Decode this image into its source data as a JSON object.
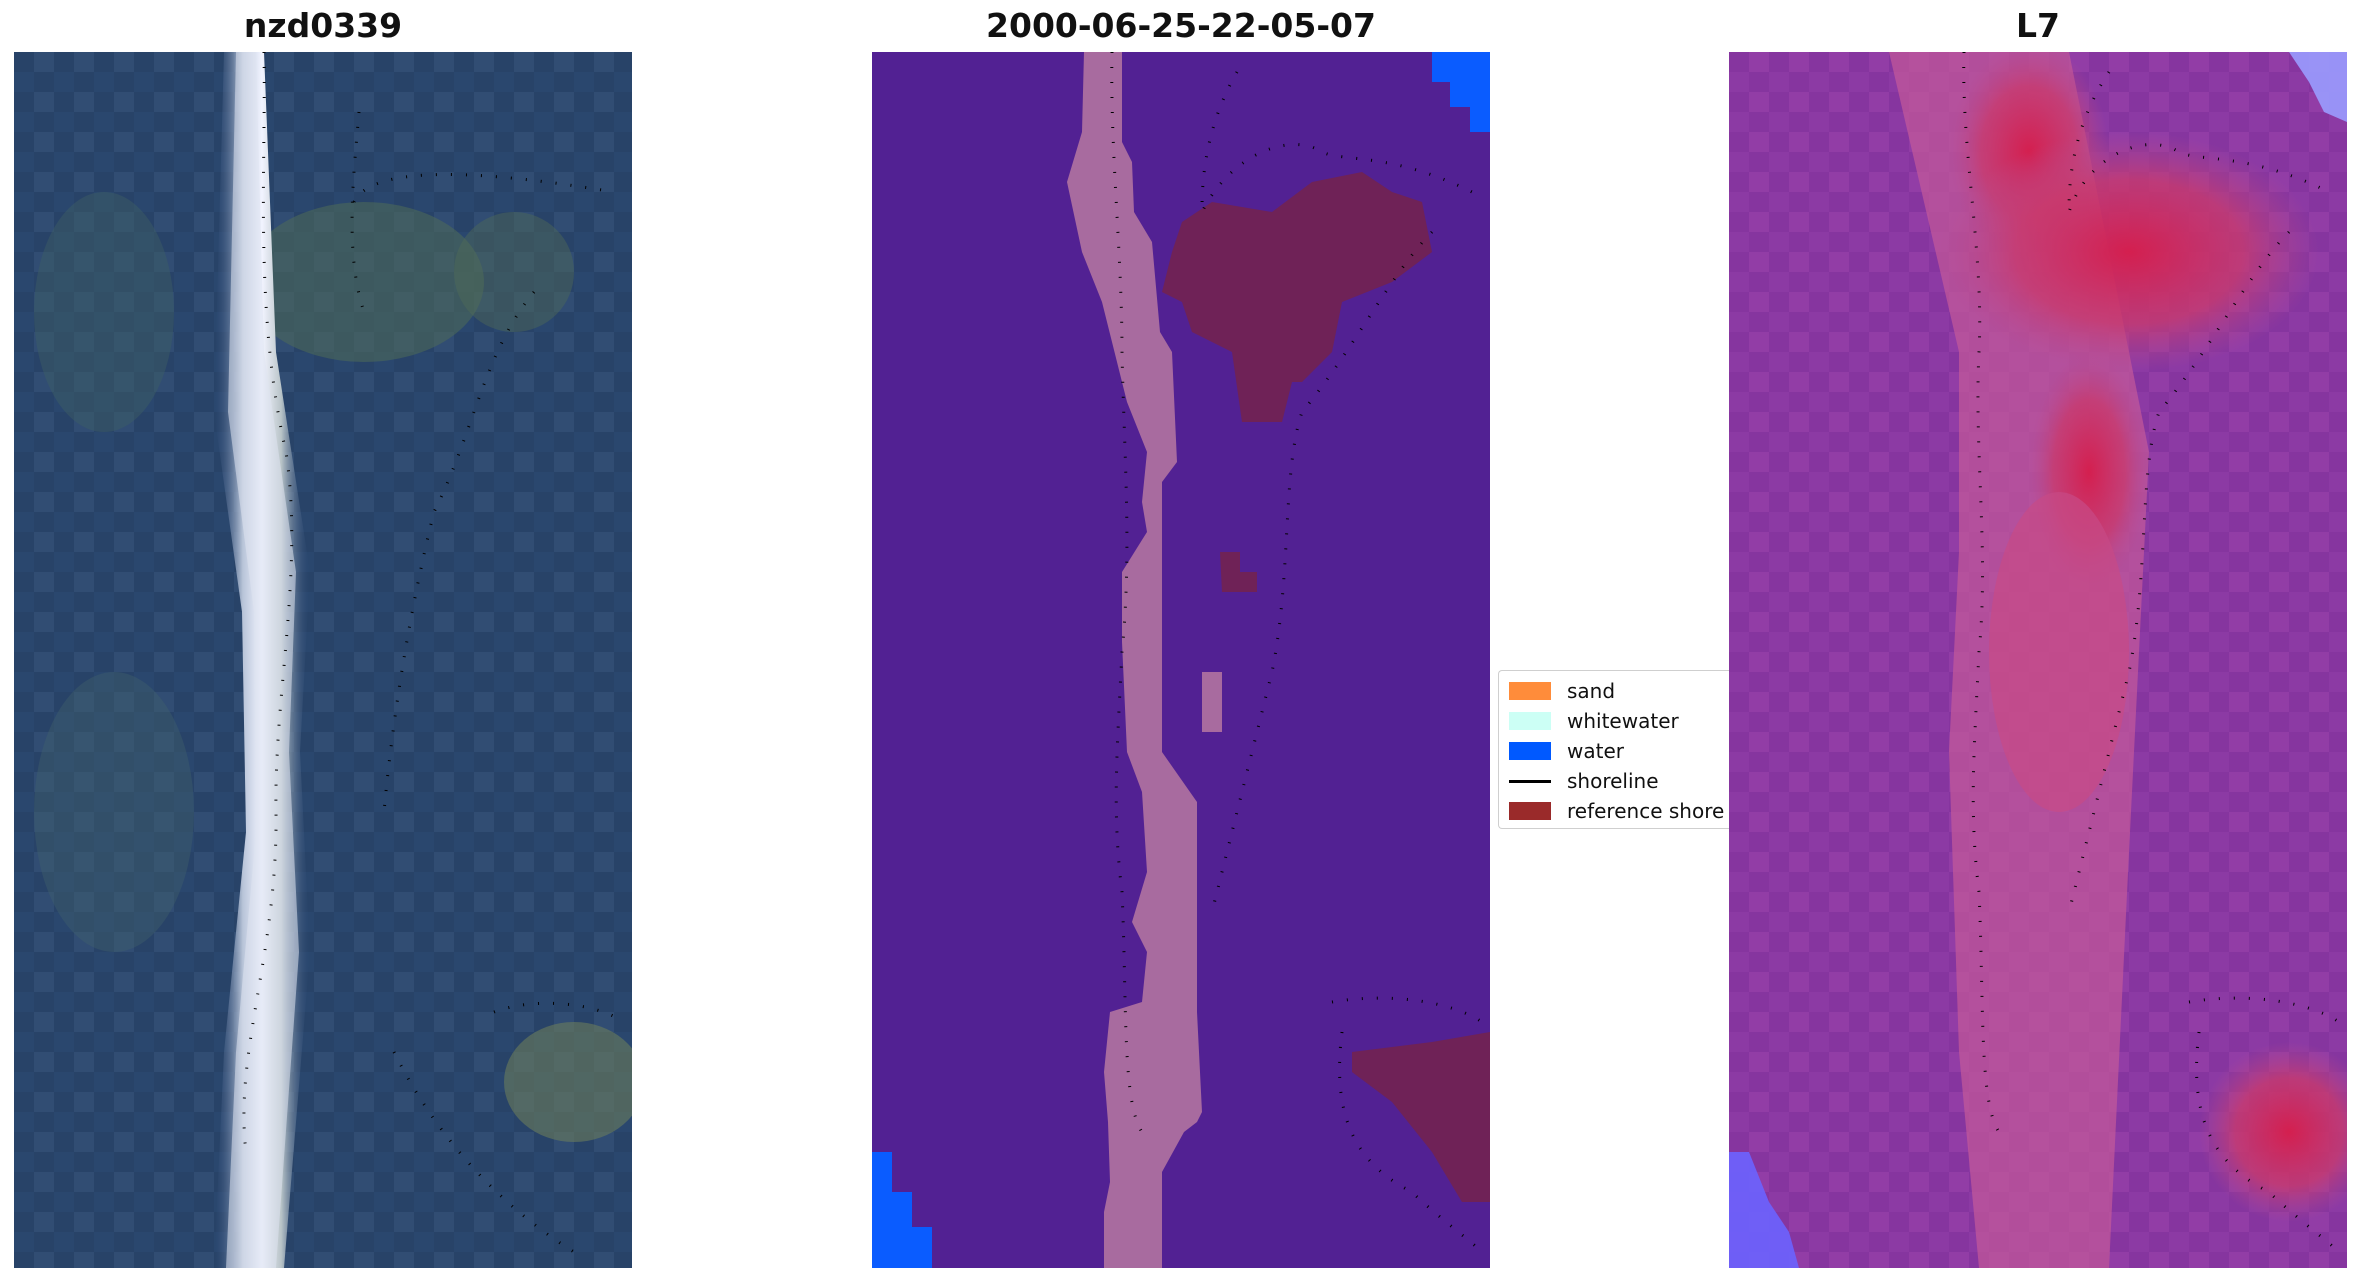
{
  "panels": {
    "rgb": {
      "title": "nzd0339"
    },
    "classified": {
      "title": "2000-06-25-22-05-07"
    },
    "index": {
      "title": "L7"
    }
  },
  "legend": {
    "items": [
      {
        "label": "sand",
        "color": "#ff8c3a",
        "kind": "patch"
      },
      {
        "label": "whitewater",
        "color": "#ccfff5",
        "kind": "patch"
      },
      {
        "label": "water",
        "color": "#0059ff",
        "kind": "patch"
      },
      {
        "label": "shoreline",
        "color": "#000000",
        "kind": "line"
      },
      {
        "label": "reference shore",
        "color": "#9a2a2a",
        "kind": "patch"
      }
    ]
  },
  "colors": {
    "classified_background": "#522193",
    "classified_strip": "#a86b9f",
    "classified_reference": "#6f2257",
    "classified_water": "#0a5cff"
  }
}
